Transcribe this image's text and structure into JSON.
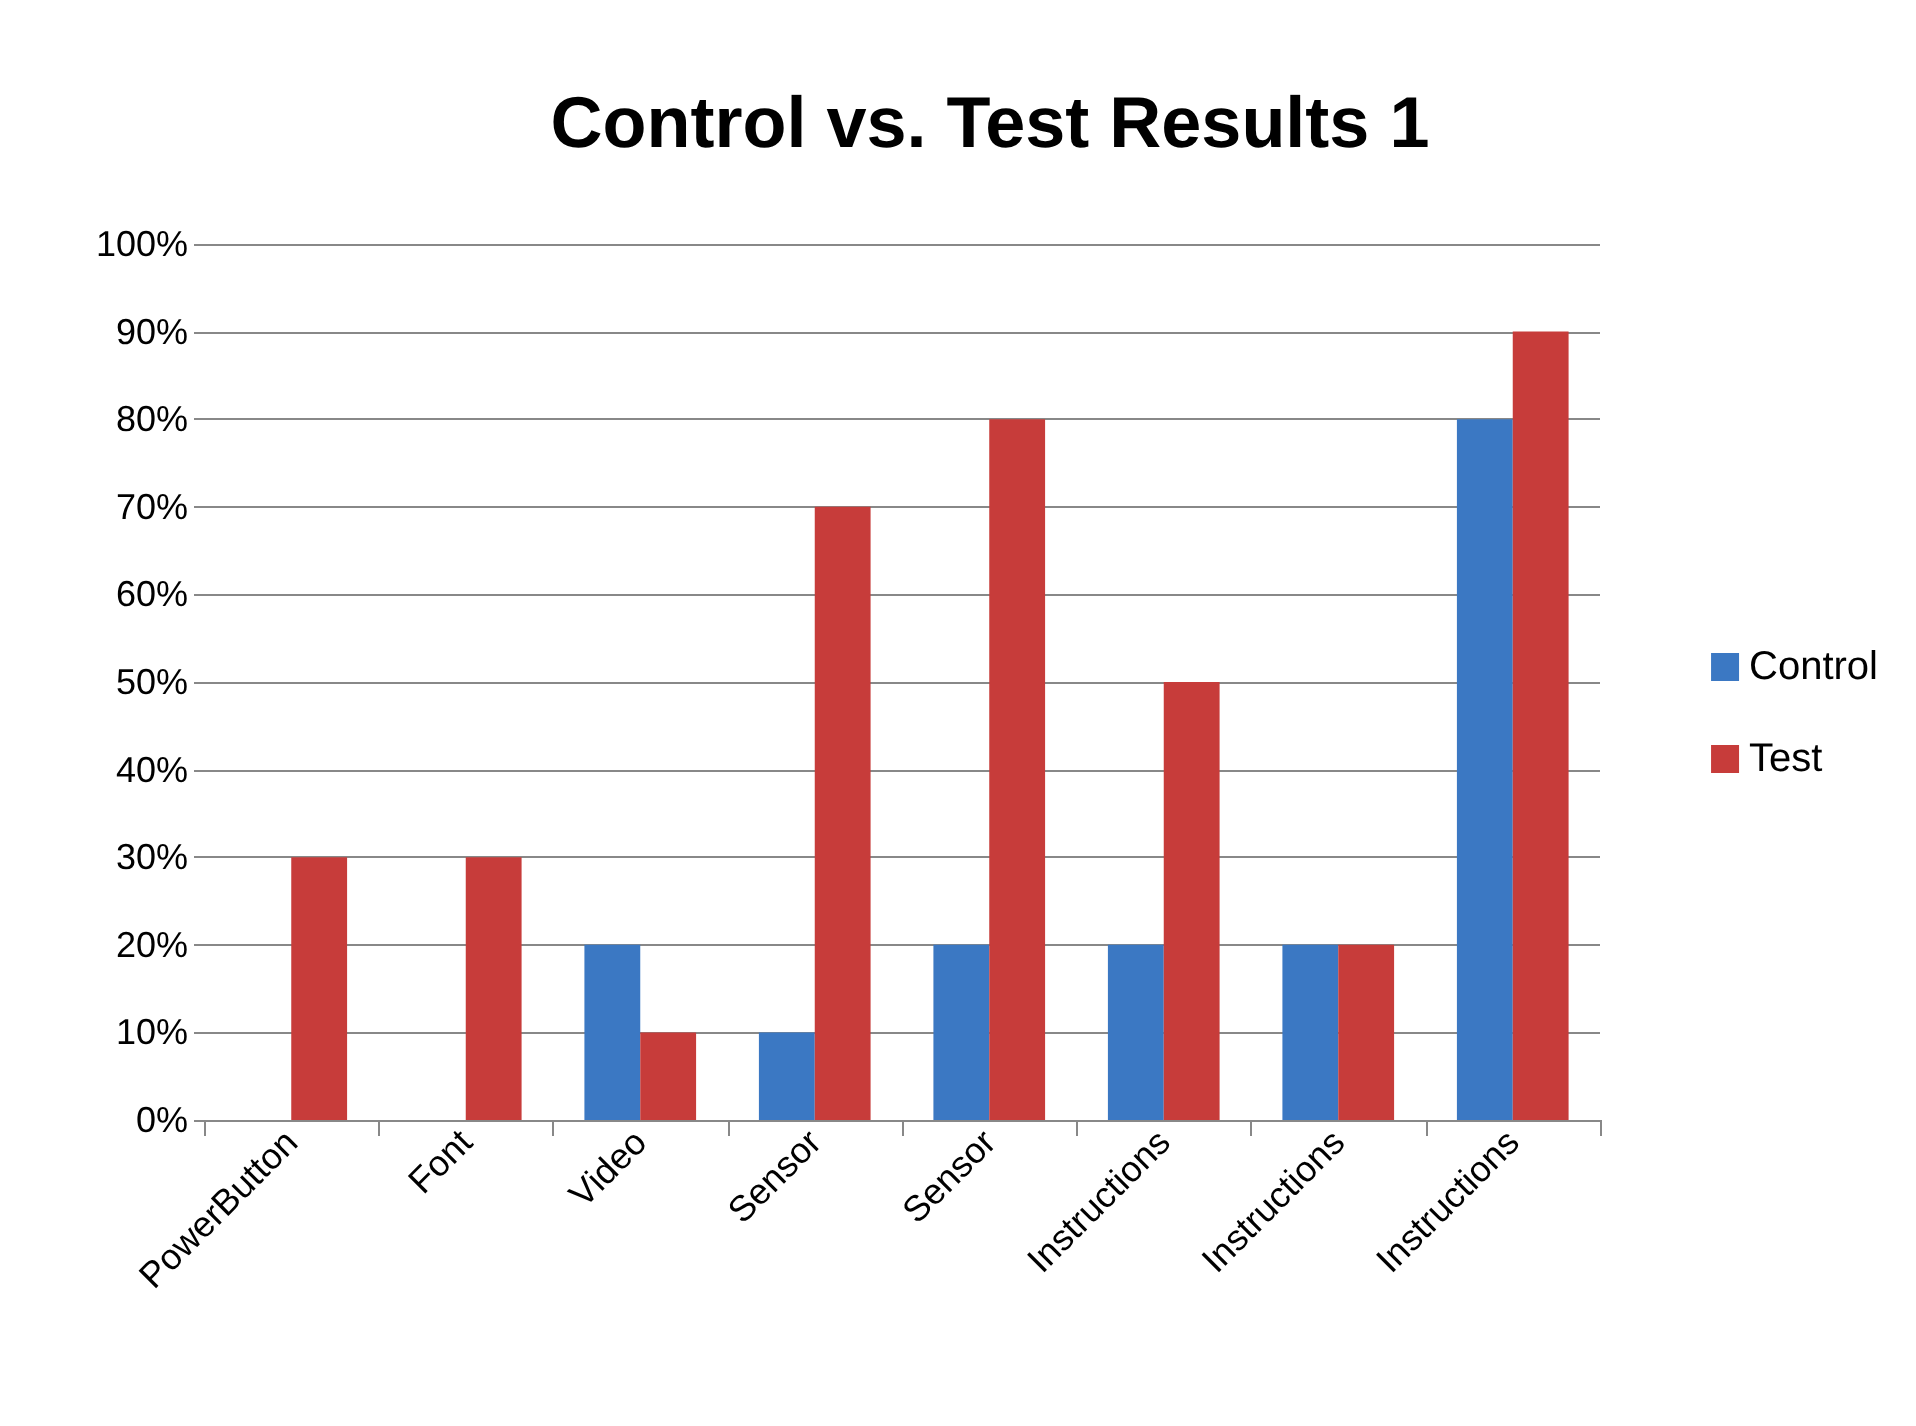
{
  "chart_data": {
    "type": "bar",
    "title": "Control vs. Test Results 1",
    "categories": [
      "PowerButton",
      "Font",
      "Video",
      "Sensor",
      "Sensor",
      "Instructions",
      "Instructions",
      "Instructions"
    ],
    "series": [
      {
        "name": "Control",
        "color": "#3b78c3",
        "values": [
          0,
          0,
          20,
          10,
          20,
          20,
          20,
          80
        ]
      },
      {
        "name": "Test",
        "color": "#c73c3a",
        "values": [
          30,
          30,
          10,
          70,
          80,
          50,
          20,
          90
        ]
      }
    ],
    "ylim": [
      0,
      100
    ],
    "yticks": [
      {
        "value": 0,
        "label": "0%"
      },
      {
        "value": 10,
        "label": "10%"
      },
      {
        "value": 20,
        "label": "20%"
      },
      {
        "value": 30,
        "label": "30%"
      },
      {
        "value": 40,
        "label": "40%"
      },
      {
        "value": 50,
        "label": "50%"
      },
      {
        "value": 60,
        "label": "60%"
      },
      {
        "value": 70,
        "label": "70%"
      },
      {
        "value": 80,
        "label": "80%"
      },
      {
        "value": 90,
        "label": "90%"
      },
      {
        "value": 100,
        "label": "100%"
      }
    ],
    "grid": "y",
    "legend": "right"
  }
}
